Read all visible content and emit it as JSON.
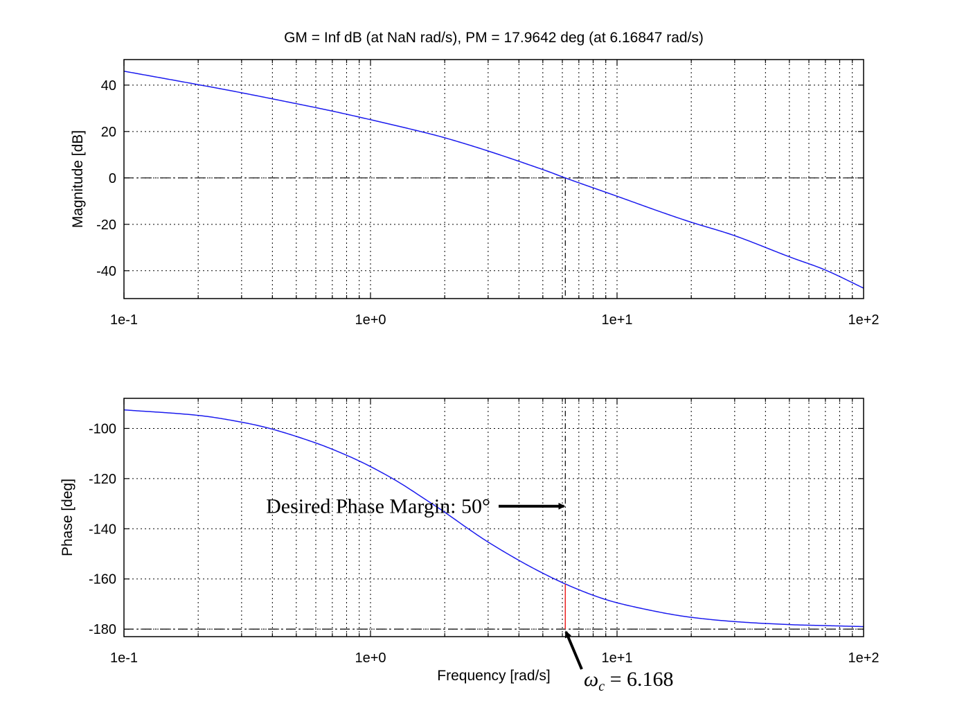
{
  "figure_title": "GM = Inf dB (at NaN rad/s),   PM = 17.9642 deg (at 6.16847 rad/s)",
  "colors": {
    "curve": "#1a1aee",
    "marker": "#ee2222",
    "grid": "#000000",
    "arrow": "#000000"
  },
  "chart_data": [
    {
      "type": "line",
      "name": "magnitude",
      "xscale": "log",
      "xlim": [
        0.1,
        100
      ],
      "ylim": [
        -52,
        51
      ],
      "ylabel": "Magnitude [dB]",
      "xlabel": "",
      "grid": true,
      "xticks": [
        {
          "value": 0.1,
          "label": "1e-1"
        },
        {
          "value": 1,
          "label": "1e+0"
        },
        {
          "value": 10,
          "label": "1e+1"
        },
        {
          "value": 100,
          "label": "1e+2"
        }
      ],
      "yticks": [
        {
          "value": 40,
          "label": "40"
        },
        {
          "value": 20,
          "label": "20"
        },
        {
          "value": 0,
          "label": "0"
        },
        {
          "value": -20,
          "label": "-20"
        },
        {
          "value": -40,
          "label": "-40"
        }
      ],
      "reference_y": 0,
      "crossover_x": 6.16847,
      "x": [
        0.1,
        0.2,
        0.3,
        0.5,
        0.7,
        1,
        1.5,
        2,
        3,
        5,
        6.16847,
        7,
        10,
        15,
        20,
        30,
        50,
        70,
        100
      ],
      "y": [
        46,
        40.2,
        36.7,
        32,
        28.8,
        25.1,
        20.7,
        17.3,
        11.6,
        3.6,
        0,
        -2.1,
        -7.9,
        -14.6,
        -19.1,
        -24.9,
        -34,
        -39.7,
        -47.5
      ]
    },
    {
      "type": "line",
      "name": "phase",
      "xscale": "log",
      "xlim": [
        0.1,
        100
      ],
      "ylim": [
        -183,
        -88
      ],
      "ylabel": "Phase [deg]",
      "xlabel": "Frequency [rad/s]",
      "grid": true,
      "xticks": [
        {
          "value": 0.1,
          "label": "1e-1"
        },
        {
          "value": 1,
          "label": "1e+0"
        },
        {
          "value": 10,
          "label": "1e+1"
        },
        {
          "value": 100,
          "label": "1e+2"
        }
      ],
      "yticks": [
        {
          "value": -100,
          "label": "-100"
        },
        {
          "value": -120,
          "label": "-120"
        },
        {
          "value": -140,
          "label": "-140"
        },
        {
          "value": -160,
          "label": "-160"
        },
        {
          "value": -180,
          "label": "-180"
        }
      ],
      "reference_y": -180,
      "crossover_x": 6.16847,
      "phase_margin_line": {
        "x": 6.16847,
        "y_from": -180,
        "y_to": -162.04
      },
      "x": [
        0.1,
        0.2,
        0.3,
        0.4,
        0.6,
        0.8,
        1,
        1.3,
        1.7,
        2,
        2.5,
        3,
        4,
        5,
        6.16847,
        8,
        10,
        15,
        20,
        30,
        50,
        70,
        100
      ],
      "y": [
        -92.6,
        -94.8,
        -97.5,
        -100.3,
        -105.8,
        -110.7,
        -115.2,
        -121.4,
        -128.8,
        -133.4,
        -140.1,
        -145.3,
        -152.6,
        -157.7,
        -162,
        -166.5,
        -169.5,
        -173.3,
        -175.3,
        -177,
        -178.2,
        -178.6,
        -179
      ]
    }
  ],
  "annotations": {
    "desired_pm": {
      "text": "Desired Phase Margin: 50°",
      "target_x": 6.16847,
      "target_y": -131
    },
    "omega_c": {
      "text": "ωc = 6.168",
      "symbol": "ω",
      "subscript": "c",
      "value_text": " = 6.168",
      "target_x": 6.16847,
      "target_y": -180
    }
  }
}
